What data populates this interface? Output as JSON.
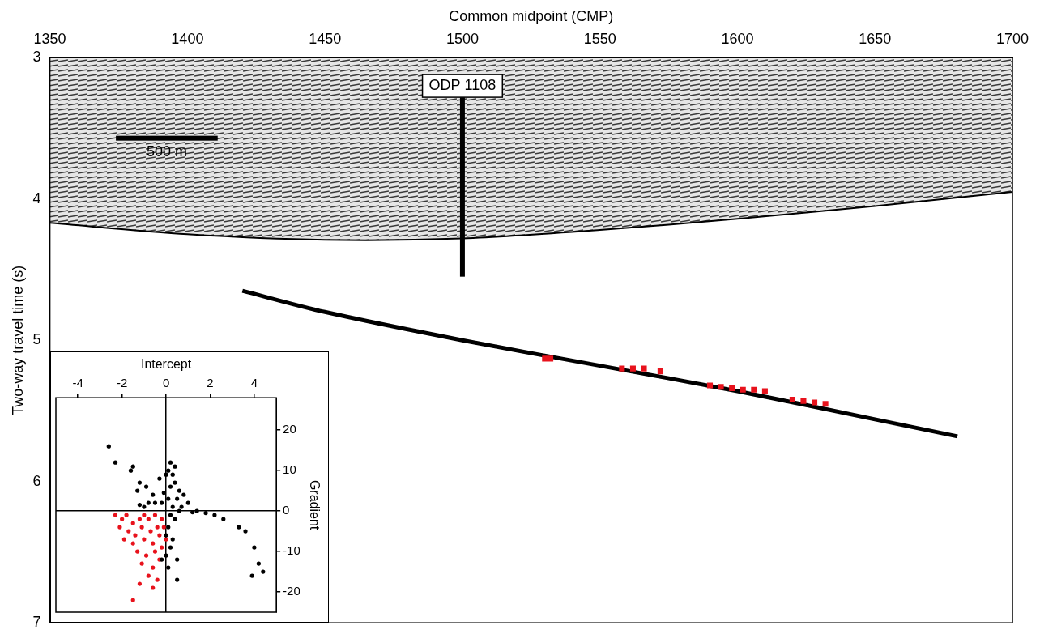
{
  "chart_data": [
    {
      "type": "scatter",
      "x_label": "Common midpoint (CMP)",
      "y_label": "Two-way travel time (s)",
      "xlim": [
        1350,
        1700
      ],
      "xticks": [
        1350,
        1400,
        1450,
        1500,
        1550,
        1600,
        1650,
        1700
      ],
      "ylim": [
        7,
        3
      ],
      "yticks": [
        3,
        4,
        5,
        6,
        7
      ],
      "grid": false,
      "series": [
        {
          "type": "line",
          "color": "#000000",
          "line_style": "solid",
          "marker": "none",
          "x": [
            1350,
            1400,
            1450,
            1500,
            1550,
            1600,
            1650,
            1700
          ],
          "values": [
            4.17,
            4.25,
            4.29,
            4.28,
            4.22,
            4.14,
            4.05,
            3.95
          ]
        },
        {
          "type": "line",
          "color": "#000000",
          "line_style": "solid",
          "marker": "none",
          "x": [
            1420,
            1450,
            1500,
            1550,
            1600,
            1650,
            1680
          ],
          "values": [
            4.65,
            4.8,
            5.0,
            5.18,
            5.36,
            5.56,
            5.68
          ]
        },
        {
          "type": "scatter",
          "color": "#e8121c",
          "marker": "square",
          "x": [
            1530,
            1532,
            1558,
            1562,
            1566,
            1572,
            1590,
            1594,
            1598,
            1602,
            1606,
            1610,
            1620,
            1624,
            1628,
            1632
          ],
          "values": [
            5.13,
            5.13,
            5.2,
            5.2,
            5.2,
            5.22,
            5.32,
            5.33,
            5.34,
            5.35,
            5.35,
            5.36,
            5.42,
            5.43,
            5.44,
            5.45
          ]
        }
      ],
      "annotations": [
        {
          "text": "ODP 1108",
          "x": 1500,
          "y": 3.2,
          "line_to_y": 4.55
        }
      ],
      "scale_bar": {
        "label": "500 m",
        "x": [
          1374,
          1411
        ],
        "y": 3.57
      }
    },
    {
      "type": "scatter",
      "x_label": "Intercept",
      "y_label": "Gradient",
      "xlim": [
        -5,
        5
      ],
      "xticks": [
        -4,
        -2,
        0,
        2,
        4
      ],
      "ylim": [
        -25,
        28
      ],
      "yticks": [
        -20,
        -10,
        0,
        10,
        20
      ],
      "grid": false,
      "series": [
        {
          "color": "#000000",
          "marker": "circle",
          "x": [
            -2.6,
            -2.3,
            -1.6,
            -1.5,
            -1.2,
            -1.3,
            -0.9,
            -0.6,
            -0.3,
            0,
            0.1,
            0.3,
            0.4,
            0.2,
            0.6,
            0.8,
            0.5,
            0.1,
            -0.2,
            -0.5,
            -0.8,
            -1,
            -1.2,
            0.3,
            0.7,
            1,
            0.2,
            0.4,
            0.1,
            0,
            0.3,
            0.2,
            0,
            -0.2,
            0.1,
            0.5,
            0.5,
            1.4,
            1.8,
            2.2,
            2.6,
            3.3,
            3.6,
            4.0,
            4.2,
            3.9,
            4.4,
            0.6,
            1.2,
            -0.1,
            0.2,
            0.4
          ],
          "values": [
            16,
            12,
            10,
            11,
            7,
            5,
            6,
            4,
            8,
            9,
            10,
            9,
            7,
            6,
            5,
            4,
            3,
            3,
            2,
            2,
            2,
            1,
            1.5,
            1,
            1,
            2,
            -1,
            -2,
            -4,
            -6,
            -7,
            -9,
            -11,
            -12,
            -14,
            -12,
            -17,
            0,
            -0.5,
            -1,
            -2,
            -4,
            -5,
            -9,
            -13,
            -16,
            -15,
            0,
            -0.3,
            4.5,
            12,
            11
          ]
        },
        {
          "color": "#e8121c",
          "marker": "circle",
          "x": [
            -2.3,
            -2,
            -1.8,
            -1.5,
            -1.2,
            -1,
            -0.8,
            -0.5,
            -0.2,
            -2.1,
            -1.7,
            -1.4,
            -1.1,
            -0.7,
            -0.4,
            -1.9,
            -1.5,
            -1.0,
            -0.6,
            -0.3,
            -1.3,
            -0.9,
            -0.5,
            -0.2,
            -1.1,
            -0.6,
            -0.3,
            -0.8,
            -0.4,
            -1.2,
            -1.5,
            -0.1,
            0,
            -0.6
          ],
          "values": [
            -1,
            -2,
            -1,
            -3,
            -2,
            -1,
            -2,
            -1,
            -2,
            -4,
            -5,
            -6,
            -4,
            -5,
            -4,
            -7,
            -8,
            -7,
            -8,
            -6,
            -10,
            -11,
            -10,
            -9,
            -13,
            -14,
            -12,
            -16,
            -17,
            -18,
            -22,
            -4,
            -7,
            -19
          ]
        }
      ]
    }
  ]
}
